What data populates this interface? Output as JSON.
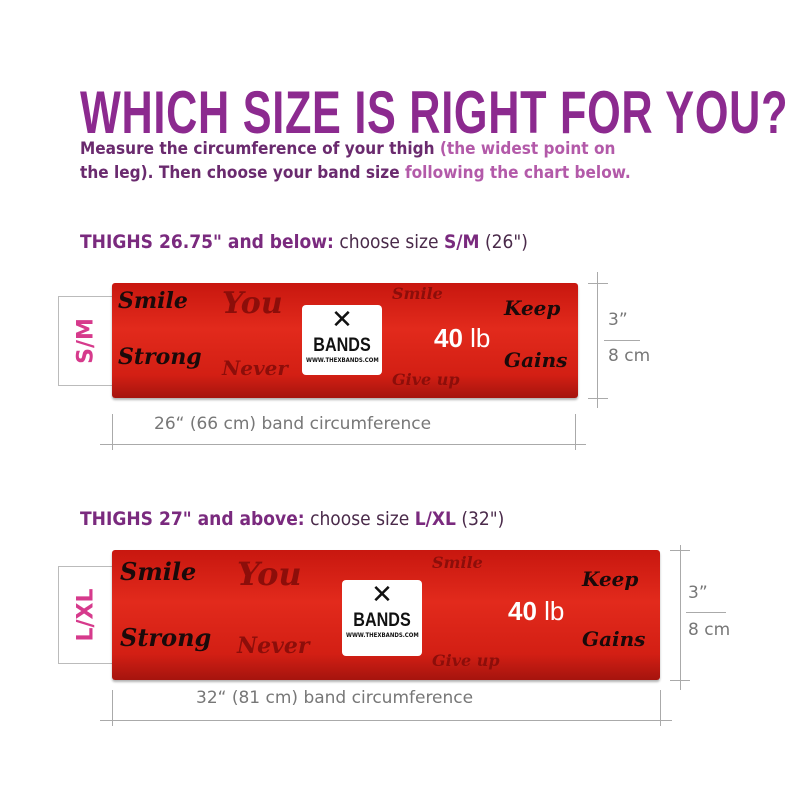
{
  "title": "WHICH SIZE IS RIGHT FOR YOU?",
  "subtitle": {
    "line1_a": "Measure the circumference of your thigh ",
    "line1_b": "(the widest point on",
    "line2_a": "the leg). Then choose your band size ",
    "line2_b": "following the chart below."
  },
  "sizes": [
    {
      "heading_bold": "THIGHS 26.75\" and below:",
      "heading_text": " choose size ",
      "heading_size": "S/M",
      "heading_suffix": " (26\")",
      "label": "S/M",
      "weight_num": "40",
      "weight_unit": "lb",
      "width_in": "3”",
      "width_cm": "8 cm",
      "circumference": "26“ (66 cm) band circumference"
    },
    {
      "heading_bold": "THIGHS 27\" and above:",
      "heading_text": " choose size ",
      "heading_size": "L/XL",
      "heading_suffix": " (32\")",
      "label": "L/XL",
      "weight_num": "40",
      "weight_unit": "lb",
      "width_in": "3”",
      "width_cm": "8 cm",
      "circumference": "32“ (81 cm) band circumference"
    }
  ],
  "band_print": {
    "logo_brand": "BANDS",
    "logo_url": "WWW.THEXBANDS.COM",
    "words": [
      "Smile",
      "Strong",
      "You",
      "Smile",
      "Never",
      "Give up",
      "Keep",
      "Gains"
    ]
  },
  "colors": {
    "title": "#8c2a8f",
    "size_label": "#d63a8c",
    "band": "#d31f14"
  }
}
